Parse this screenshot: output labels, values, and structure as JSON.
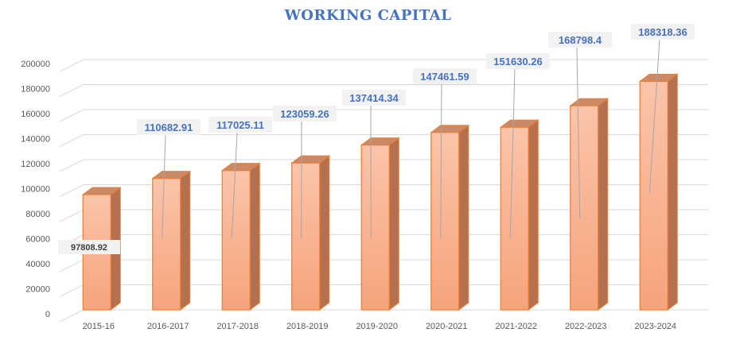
{
  "chart_data": {
    "type": "bar",
    "title": "WORKING CAPITAL",
    "categories": [
      "2015-16",
      "2016-2017",
      "2017-2018",
      "2018-2019",
      "2019-2020",
      "2020-2021",
      "2021-2022",
      "2022-2023",
      "2023-2024"
    ],
    "values": [
      97808.92,
      110682.91,
      117025.11,
      123059.26,
      137414.34,
      147461.59,
      151630.26,
      168798.4,
      188318.36
    ],
    "data_labels": [
      "97808.92",
      "110682.91",
      "117025.11",
      "123059.26",
      "137414.34",
      "147461.59",
      "151630.26",
      "168798.4",
      "188318.36"
    ],
    "ylim": [
      0,
      200000
    ],
    "yticks": [
      0,
      20000,
      40000,
      60000,
      80000,
      100000,
      120000,
      140000,
      160000,
      180000,
      200000
    ],
    "ytick_labels": [
      "0",
      "20000",
      "40000",
      "60000",
      "80000",
      "100000",
      "120000",
      "140000",
      "160000",
      "180000",
      "200000"
    ],
    "grid": true,
    "style": "3d-column",
    "colors": {
      "bar_top": "#fbc4aa",
      "bar_bottom": "#f6a47c",
      "bar_side": "#b5714f",
      "bar_cap": "#c98a6a",
      "bar_outline": "#ed7d31",
      "label_text": "#4472c4",
      "first_label_text": "#404040",
      "label_box": "#f2f2f2",
      "grid": "#d9d9d9",
      "tick_text": "#595959"
    }
  }
}
